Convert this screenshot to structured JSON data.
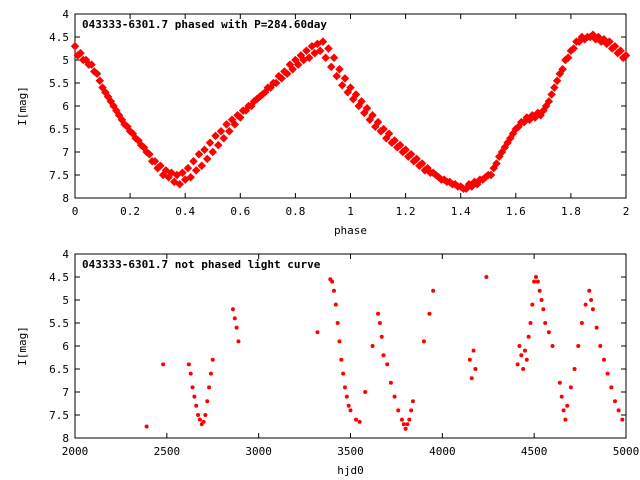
{
  "chart_data": [
    {
      "type": "scatter",
      "title": "043333-6301.7 phased with P=284.60day",
      "xlabel": "phase",
      "ylabel": "I[mag]",
      "xlim": [
        0,
        2
      ],
      "ylim": [
        8,
        4
      ],
      "y_inverted": true,
      "xticks": [
        0,
        0.2,
        0.4,
        0.6,
        0.8,
        1,
        1.2,
        1.4,
        1.6,
        1.8,
        2
      ],
      "xtick_labels": [
        "0",
        "0.2",
        "0.4",
        "0.6",
        "0.8",
        "1",
        "1.2",
        "1.4",
        "1.6",
        "1.8",
        "2"
      ],
      "yticks": [
        4,
        4.5,
        5,
        5.5,
        6,
        6.5,
        7,
        7.5,
        8
      ],
      "ytick_labels": [
        "4",
        "4.5",
        "5",
        "5.5",
        "6",
        "6.5",
        "7",
        "7.5",
        "8"
      ],
      "grid": false,
      "marker_color": "#ff0000",
      "series": [
        {
          "x": [
            0.0,
            0.02,
            0.04,
            0.06,
            0.08,
            0.1,
            0.12,
            0.14,
            0.16,
            0.18,
            0.2,
            0.22,
            0.24,
            0.26,
            0.28,
            0.3,
            0.32,
            0.34,
            0.36,
            0.38,
            0.4,
            0.42,
            0.44,
            0.46,
            0.48,
            0.5,
            0.52,
            0.54,
            0.56,
            0.58,
            0.6,
            0.62,
            0.64,
            0.66,
            0.68,
            0.7,
            0.72,
            0.74,
            0.76,
            0.78,
            0.8,
            0.82,
            0.84,
            0.86,
            0.88,
            0.9,
            0.92,
            0.94,
            0.96,
            0.98,
            1.0,
            1.02,
            1.04,
            1.06,
            1.08,
            1.1,
            1.12,
            1.14,
            1.16,
            1.18,
            1.2,
            1.22,
            1.24,
            1.26,
            1.28,
            1.3,
            1.32,
            1.34,
            1.36,
            1.38,
            1.4,
            1.42,
            1.44,
            1.46,
            1.48,
            1.5,
            1.52,
            1.54,
            1.56,
            1.58,
            1.6,
            1.62,
            1.64,
            1.66,
            1.68,
            1.7,
            1.72,
            1.74,
            1.76,
            1.78,
            1.8,
            1.82,
            1.84,
            1.86,
            1.88,
            1.9,
            1.92,
            1.94,
            1.96,
            1.98,
            2.0,
            0.01,
            0.03,
            0.05,
            0.07,
            0.09,
            0.11,
            0.13,
            0.15,
            0.17,
            0.19,
            0.21,
            0.23,
            0.25,
            0.27,
            0.29,
            0.31,
            0.33,
            0.35,
            0.37,
            0.39,
            0.41,
            0.43,
            0.45,
            0.47,
            0.49,
            0.51,
            0.53,
            0.55,
            0.57,
            0.59,
            0.61,
            0.63,
            0.65,
            0.67,
            0.69,
            0.71,
            0.73,
            0.75,
            0.77,
            0.79,
            0.81,
            0.83,
            0.85,
            0.87,
            0.89,
            0.91,
            0.93,
            0.95,
            0.97,
            0.99,
            1.01,
            1.03,
            1.05,
            1.07,
            1.09,
            1.11,
            1.13,
            1.15,
            1.17,
            1.19,
            1.21,
            1.23,
            1.25,
            1.27,
            1.29,
            1.31,
            1.33,
            1.35,
            1.37,
            1.39,
            1.41,
            1.43,
            1.45,
            1.47,
            1.49,
            1.51,
            1.53,
            1.55,
            1.57,
            1.59,
            1.61,
            1.63,
            1.65,
            1.67,
            1.69,
            1.71,
            1.73,
            1.75,
            1.77,
            1.79,
            1.81,
            1.83,
            1.85,
            1.87,
            1.89,
            1.91,
            1.93,
            1.95,
            1.97,
            1.99
          ],
          "y": [
            4.7,
            4.85,
            5.0,
            5.1,
            5.3,
            5.6,
            5.8,
            6.0,
            6.2,
            6.4,
            6.55,
            6.7,
            6.85,
            7.0,
            7.2,
            7.35,
            7.5,
            7.55,
            7.65,
            7.7,
            7.6,
            7.55,
            7.4,
            7.3,
            7.15,
            7.0,
            6.85,
            6.7,
            6.55,
            6.4,
            6.25,
            6.1,
            6.0,
            5.85,
            5.75,
            5.6,
            5.5,
            5.35,
            5.25,
            5.1,
            5.0,
            4.9,
            4.8,
            4.7,
            4.65,
            4.6,
            4.75,
            4.95,
            5.2,
            5.4,
            5.6,
            5.75,
            5.9,
            6.05,
            6.2,
            6.35,
            6.5,
            6.6,
            6.75,
            6.85,
            6.95,
            7.05,
            7.15,
            7.25,
            7.35,
            7.45,
            7.55,
            7.6,
            7.65,
            7.7,
            7.75,
            7.8,
            7.75,
            7.7,
            7.6,
            7.5,
            7.35,
            7.1,
            6.9,
            6.7,
            6.5,
            6.35,
            6.25,
            6.2,
            6.15,
            6.1,
            5.9,
            5.6,
            5.3,
            5.0,
            4.8,
            4.6,
            4.5,
            4.5,
            4.45,
            4.5,
            4.55,
            4.6,
            4.7,
            4.8,
            4.9,
            4.9,
            5.0,
            5.1,
            5.25,
            5.45,
            5.7,
            5.9,
            6.1,
            6.3,
            6.45,
            6.6,
            6.75,
            6.9,
            7.05,
            7.2,
            7.3,
            7.4,
            7.45,
            7.5,
            7.45,
            7.35,
            7.2,
            7.05,
            6.95,
            6.8,
            6.65,
            6.55,
            6.4,
            6.3,
            6.2,
            6.1,
            6.0,
            5.9,
            5.8,
            5.7,
            5.6,
            5.5,
            5.4,
            5.3,
            5.2,
            5.1,
            5.0,
            4.95,
            4.85,
            4.8,
            4.95,
            5.15,
            5.35,
            5.55,
            5.7,
            5.85,
            6.0,
            6.15,
            6.3,
            6.45,
            6.55,
            6.7,
            6.8,
            6.9,
            7.0,
            7.1,
            7.2,
            7.3,
            7.4,
            7.45,
            7.5,
            7.6,
            7.65,
            7.7,
            7.75,
            7.8,
            7.7,
            7.65,
            7.6,
            7.55,
            7.5,
            7.25,
            7.0,
            6.8,
            6.6,
            6.45,
            6.35,
            6.3,
            6.25,
            6.2,
            6.0,
            5.75,
            5.45,
            5.2,
            4.95,
            4.75,
            4.6,
            4.55,
            4.5,
            4.55,
            4.6,
            4.65,
            4.75,
            4.85,
            4.95
          ]
        }
      ]
    },
    {
      "type": "scatter",
      "title": "043333-6301.7 not phased light curve",
      "xlabel": "hjd0",
      "ylabel": "I[mag]",
      "xlim": [
        2000,
        5000
      ],
      "ylim": [
        8,
        4
      ],
      "y_inverted": true,
      "xticks": [
        2000,
        2500,
        3000,
        3500,
        4000,
        4500,
        5000
      ],
      "xtick_labels": [
        "2000",
        "2500",
        "3000",
        "3500",
        "4000",
        "4500",
        "5000"
      ],
      "yticks": [
        4,
        4.5,
        5,
        5.5,
        6,
        6.5,
        7,
        7.5,
        8
      ],
      "ytick_labels": [
        "4",
        "4.5",
        "5",
        "5.5",
        "6",
        "6.5",
        "7",
        "7.5",
        "8"
      ],
      "grid": false,
      "marker_color": "#ff0000",
      "series": [
        {
          "x": [
            2390,
            2480,
            2620,
            2630,
            2640,
            2650,
            2660,
            2670,
            2680,
            2690,
            2700,
            2710,
            2720,
            2730,
            2740,
            2750,
            2860,
            2870,
            2880,
            2890,
            3320,
            3390,
            3400,
            3410,
            3420,
            3430,
            3440,
            3450,
            3460,
            3470,
            3480,
            3490,
            3500,
            3530,
            3550,
            3580,
            3620,
            3650,
            3660,
            3670,
            3680,
            3700,
            3720,
            3740,
            3760,
            3780,
            3790,
            3800,
            3810,
            3820,
            3830,
            3840,
            3900,
            3930,
            3950,
            4150,
            4160,
            4170,
            4180,
            4240,
            4410,
            4420,
            4430,
            4440,
            4450,
            4460,
            4470,
            4480,
            4490,
            4500,
            4510,
            4520,
            4530,
            4540,
            4550,
            4560,
            4580,
            4600,
            4640,
            4650,
            4660,
            4670,
            4680,
            4700,
            4720,
            4740,
            4760,
            4780,
            4800,
            4810,
            4820,
            4840,
            4860,
            4880,
            4900,
            4920,
            4940,
            4960,
            4980
          ],
          "y": [
            7.75,
            6.4,
            6.4,
            6.6,
            6.9,
            7.1,
            7.3,
            7.5,
            7.6,
            7.7,
            7.65,
            7.5,
            7.2,
            6.9,
            6.6,
            6.3,
            5.2,
            5.4,
            5.6,
            5.9,
            5.7,
            4.55,
            4.6,
            4.8,
            5.1,
            5.5,
            5.9,
            6.3,
            6.6,
            6.9,
            7.1,
            7.3,
            7.4,
            7.6,
            7.65,
            7.0,
            6.0,
            5.3,
            5.5,
            5.8,
            6.2,
            6.4,
            6.8,
            7.1,
            7.4,
            7.6,
            7.7,
            7.8,
            7.7,
            7.6,
            7.4,
            7.2,
            5.9,
            5.3,
            4.8,
            6.3,
            6.7,
            6.1,
            6.5,
            4.5,
            6.4,
            6.0,
            6.2,
            6.5,
            6.1,
            6.3,
            5.8,
            5.5,
            5.1,
            4.6,
            4.5,
            4.6,
            4.8,
            5.0,
            5.2,
            5.5,
            5.7,
            6.0,
            6.8,
            7.1,
            7.4,
            7.6,
            7.3,
            6.9,
            6.5,
            6.0,
            5.5,
            5.1,
            4.8,
            5.0,
            5.2,
            5.6,
            6.0,
            6.3,
            6.6,
            6.9,
            7.2,
            7.4,
            7.6
          ]
        }
      ]
    }
  ]
}
